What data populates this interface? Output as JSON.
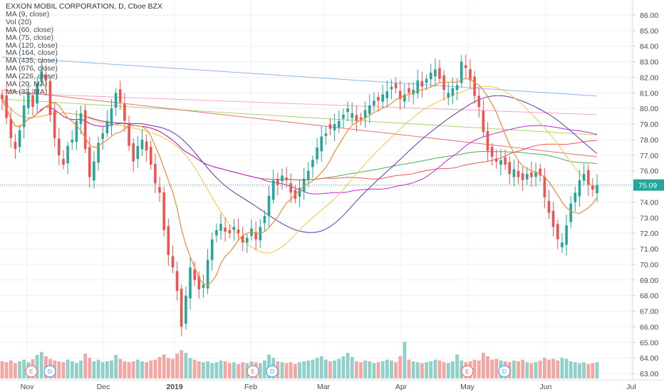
{
  "header": {
    "title": "EXXON MOBIL CORPORATION, D, Cboe BZX",
    "indicators": [
      "MA (9, close)",
      "Vol (20)",
      "MA (60, close)",
      "MA (75, close)",
      "MA (120, close)",
      "MA (164, close)",
      "MA (435, close)",
      "MA (676, close)",
      "MA (226, close)",
      "MA (20, MA)",
      "MA (33, MA)"
    ]
  },
  "chart_data": {
    "type": "candlestick",
    "symbol": "XOM",
    "timeframe": "D",
    "ylim": [
      62.5,
      87
    ],
    "y_ticks": [
      "86.00",
      "85.00",
      "84.00",
      "83.00",
      "82.00",
      "81.00",
      "80.00",
      "79.00",
      "78.00",
      "77.00",
      "76.00",
      "75.00",
      "74.00",
      "73.00",
      "72.00",
      "71.00",
      "70.00",
      "69.00",
      "68.00",
      "67.00",
      "66.00",
      "65.00",
      "64.00",
      "63.00"
    ],
    "x_ticks": [
      {
        "label": "Nov",
        "bold": false
      },
      {
        "label": "Dec",
        "bold": false
      },
      {
        "label": "2019",
        "bold": true
      },
      {
        "label": "Feb",
        "bold": false
      },
      {
        "label": "Mar",
        "bold": false
      },
      {
        "label": "Apr",
        "bold": false
      },
      {
        "label": "May",
        "bold": false
      },
      {
        "label": "Jun",
        "bold": false
      },
      {
        "label": "Jul",
        "bold": false
      }
    ],
    "last_price": "75.09",
    "events": [
      {
        "label": "E",
        "color": "#e57373"
      },
      {
        "label": "D",
        "color": "#42a5f5"
      },
      {
        "label": "E",
        "color": "#e57373"
      },
      {
        "label": "D",
        "color": "#42a5f5"
      },
      {
        "label": "E",
        "color": "#e57373"
      },
      {
        "label": "D",
        "color": "#42a5f5"
      }
    ],
    "colors": {
      "up": "#26a69a",
      "down": "#ef5350",
      "vol_up": "#8fd0c8",
      "vol_down": "#f3a6a4",
      "price_line": "#26a69a",
      "ma9": "#f08a36",
      "ma20ma": "#f5c542",
      "ma33ma": "#5e35b1",
      "ma60": "#c026d3",
      "ma75": "#ef5350",
      "ma120": "#4caf50",
      "ma164": "#e57373",
      "ma226": "#a5d66b",
      "ma435": "#f8a5c2",
      "ma676": "#90b4f0"
    },
    "closes_start": 80.9,
    "closes": [
      80.6,
      79.4,
      78.1,
      77.4,
      78.6,
      80.2,
      81.0,
      80.1,
      81.6,
      82.4,
      81.8,
      79.6,
      78.1,
      77.0,
      76.4,
      77.6,
      78.0,
      79.2,
      79.7,
      77.4,
      75.6,
      76.6,
      77.8,
      78.4,
      79.2,
      80.0,
      81.0,
      80.4,
      79.2,
      77.6,
      76.6,
      77.6,
      78.0,
      77.3,
      76.4,
      75.2,
      74.6,
      72.2,
      70.6,
      69.8,
      68.3,
      66.0,
      68.0,
      69.8,
      69.0,
      68.4,
      68.7,
      70.3,
      71.6,
      72.2,
      72.6,
      72.1,
      72.0,
      72.4,
      72.0,
      71.4,
      71.7,
      72.3,
      71.6,
      72.4,
      73.1,
      74.4,
      75.4,
      75.1,
      75.7,
      75.4,
      74.6,
      74.2,
      74.9,
      75.5,
      76.0,
      76.7,
      77.5,
      78.2,
      78.4,
      78.7,
      79.0,
      79.2,
      79.6,
      80.0,
      79.7,
      79.2,
      79.3,
      79.9,
      80.2,
      80.5,
      80.5,
      80.9,
      81.1,
      81.4,
      81.3,
      80.6,
      80.9,
      81.0,
      81.2,
      81.8,
      81.4,
      81.9,
      82.3,
      82.5,
      81.9,
      81.2,
      81.0,
      81.3,
      81.5,
      83.0,
      82.6,
      81.8,
      80.8,
      80.1,
      78.5,
      77.3,
      76.9,
      76.6,
      76.7,
      76.4,
      75.8,
      76.1,
      75.6,
      75.4,
      75.8,
      75.6,
      75.9,
      75.7,
      74.3,
      73.3,
      72.4,
      71.6,
      71.4,
      72.5,
      73.9,
      74.6,
      75.4,
      75.8,
      75.1,
      74.8,
      75.09
    ],
    "volume": [
      0.4,
      0.38,
      0.42,
      0.36,
      0.4,
      0.44,
      0.38,
      0.45,
      0.55,
      0.62,
      0.52,
      0.46,
      0.42,
      0.4,
      0.38,
      0.44,
      0.4,
      0.36,
      0.42,
      0.58,
      0.48,
      0.4,
      0.44,
      0.38,
      0.4,
      0.42,
      0.55,
      0.46,
      0.4,
      0.38,
      0.4,
      0.44,
      0.4,
      0.38,
      0.42,
      0.44,
      0.5,
      0.56,
      0.48,
      0.46,
      0.58,
      0.66,
      0.6,
      0.48,
      0.44,
      0.4,
      0.38,
      0.4,
      0.36,
      0.38,
      0.42,
      0.4,
      0.36,
      0.38,
      0.34,
      0.38,
      0.36,
      0.4,
      0.38,
      0.36,
      0.42,
      0.56,
      0.48,
      0.4,
      0.38,
      0.36,
      0.38,
      0.34,
      0.38,
      0.4,
      0.42,
      0.44,
      0.48,
      0.52,
      0.44,
      0.4,
      0.42,
      0.46,
      0.52,
      0.6,
      0.5,
      0.4,
      0.38,
      0.42,
      0.4,
      0.36,
      0.38,
      0.4,
      0.44,
      0.42,
      0.38,
      0.52,
      0.86,
      0.44,
      0.4,
      0.38,
      0.36,
      0.38,
      0.4,
      0.44,
      0.42,
      0.38,
      0.36,
      0.4,
      0.56,
      0.42,
      0.38,
      0.4,
      0.44,
      0.42,
      0.6,
      0.52,
      0.44,
      0.46,
      0.42,
      0.4,
      0.38,
      0.42,
      0.4,
      0.44,
      0.38,
      0.36,
      0.38,
      0.42,
      0.48,
      0.44,
      0.46,
      0.42,
      0.48,
      0.46,
      0.4,
      0.38,
      0.36,
      0.38,
      0.34,
      0.36,
      0.38
    ]
  }
}
